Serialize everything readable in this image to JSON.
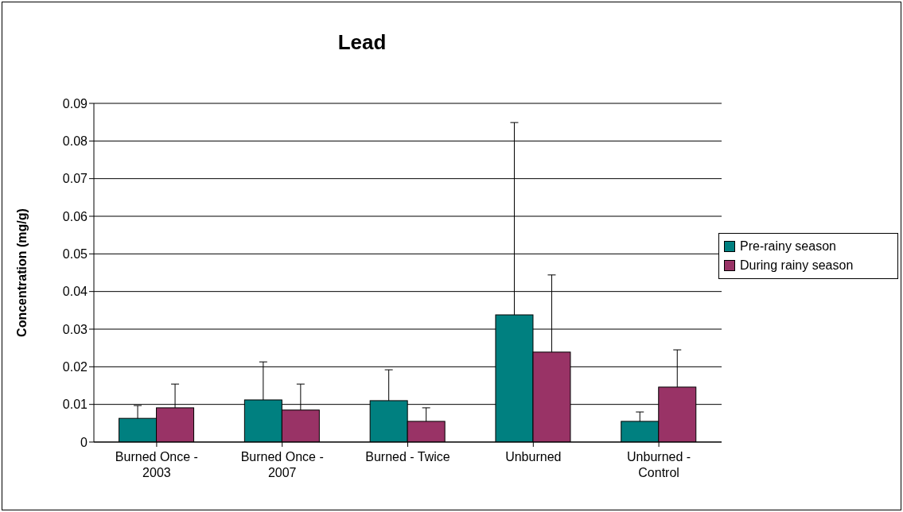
{
  "chart_data": {
    "type": "bar",
    "title": "Lead",
    "ylabel": "Concentration (mg/g)",
    "categories": [
      "Burned Once - 2003",
      "Burned Once - 2007",
      "Burned - Twice",
      "Unburned",
      "Unburned - Control"
    ],
    "series": [
      {
        "name": "Pre-rainy season",
        "color": "#008080",
        "values": [
          0.0063,
          0.0112,
          0.011,
          0.0338,
          0.0055
        ],
        "errors": [
          [
            0.0063,
            0.0097
          ],
          [
            0.0112,
            0.0213
          ],
          [
            0.011,
            0.0192
          ],
          [
            0.0338,
            0.0849
          ],
          [
            0.0055,
            0.008
          ]
        ]
      },
      {
        "name": "During rainy season",
        "color": "#993366",
        "values": [
          0.0091,
          0.0085,
          0.0055,
          0.0239,
          0.0146
        ],
        "errors": [
          [
            0.0091,
            0.0154
          ],
          [
            0.0085,
            0.0154
          ],
          [
            0.0055,
            0.0091
          ],
          [
            0.0239,
            0.0444
          ],
          [
            0.0146,
            0.0245
          ]
        ]
      }
    ],
    "ylim": [
      0,
      0.09
    ],
    "yticks": [
      0,
      0.01,
      0.02,
      0.03,
      0.04,
      0.05,
      0.06,
      0.07,
      0.08,
      0.09
    ],
    "grid": "y",
    "legend": "right"
  }
}
